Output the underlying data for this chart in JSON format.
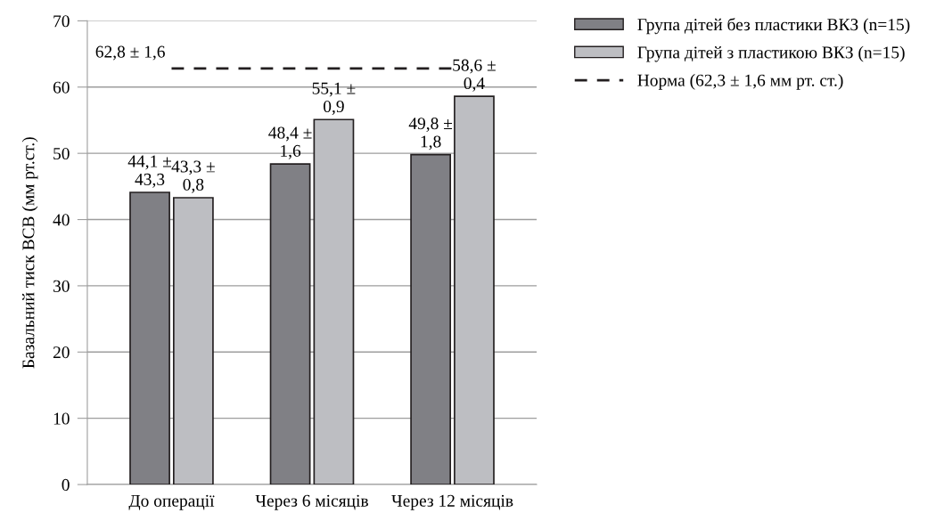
{
  "chart_data": {
    "type": "bar",
    "ylabel": "Базальний тиск ВСВ (мм рт.ст.)",
    "categories": [
      "До операції",
      "Через 6 місяців",
      "Через 12 місяців"
    ],
    "series": [
      {
        "name": "Група дітей без пластики ВКЗ (n=15)",
        "color": "#808085",
        "values": [
          44.1,
          48.4,
          49.8
        ],
        "value_labels": [
          "44,1 ±\n43,3",
          "48,4 ±\n1,6",
          "49,8 ±\n1,8"
        ]
      },
      {
        "name": "Група дітей з пластикою ВКЗ (n=15)",
        "color": "#bdbec2",
        "values": [
          43.3,
          55.1,
          58.6
        ],
        "value_labels": [
          "43,3 ±\n0,8",
          "55,1 ±\n0,9",
          "58,6 ±\n0,4"
        ]
      },
      {
        "name": "Норма (62,3 ± 1,6 мм рт. ст.)",
        "type": "line",
        "color": "#231f20",
        "line_style": "dashed",
        "values": [
          62.8,
          62.8,
          62.8
        ]
      }
    ],
    "annotations": [
      {
        "text": "62,8 ± 1,6",
        "x": "До операції",
        "y": 62.8
      }
    ],
    "ylim": [
      0,
      70
    ],
    "yticks": [
      0,
      10,
      20,
      30,
      40,
      50,
      60,
      70
    ],
    "grid": "y",
    "legend": "top right"
  }
}
